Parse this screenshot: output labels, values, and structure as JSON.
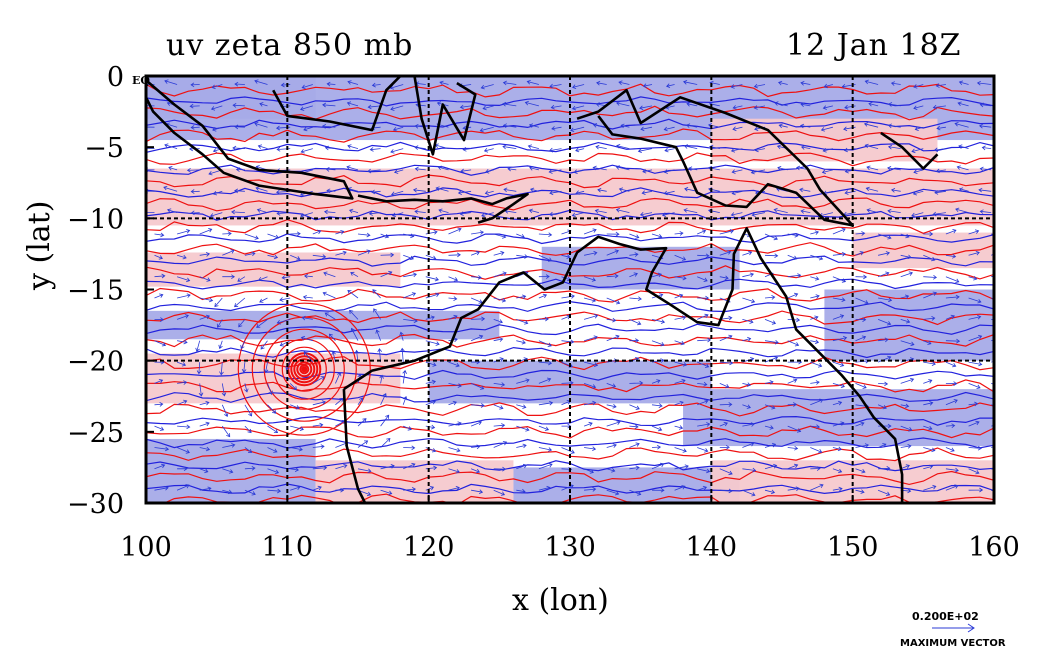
{
  "title": {
    "left": "uv zeta 850 mb",
    "right": "12 Jan 18Z"
  },
  "axes": {
    "xlabel": "x (lon)",
    "ylabel": "y (lat)",
    "xlim": [
      100,
      160
    ],
    "ylim": [
      -30,
      0
    ],
    "x_ticks": [
      "100",
      "110",
      "120",
      "130",
      "140",
      "150",
      "160"
    ],
    "y_ticks": [
      "0",
      "−5",
      "−10",
      "−15",
      "−20",
      "−25",
      "−30"
    ],
    "eq_label": "EQ"
  },
  "legend": {
    "vector_value": "0.200E+02",
    "vector_label": "MAXIMUM VECTOR"
  },
  "colors": {
    "positive_fill": "#f6c9cd",
    "negative_fill": "#a7abe8",
    "positive_contour": "#ee1111",
    "negative_contour": "#2222dd",
    "vector": "#2b3bd6",
    "coast": "#000000",
    "grid": "#000000"
  }
}
